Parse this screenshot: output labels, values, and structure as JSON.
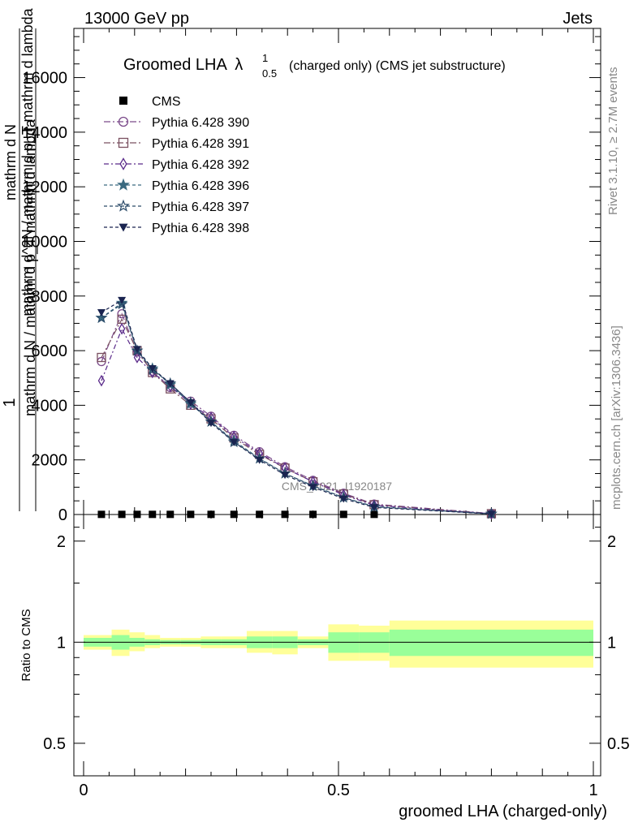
{
  "header": {
    "left": "13000 GeV pp",
    "right": "Jets"
  },
  "side_labels": {
    "rivet": "Rivet 3.1.10, ≥ 2.7M events",
    "mcplots": "mcplots.cern.ch [arXiv:1306.3436]"
  },
  "watermark": "CMS_2021_I1920187",
  "chart_data": [
    {
      "type": "line",
      "title_main": "Groomed LHA",
      "title_symbol": "λ",
      "title_sup": "1",
      "title_sub": "0.5",
      "title_tail": "(charged only) (CMS jet substructure)",
      "ylabel_top": "1",
      "ylabel_mid": "mathrm d N",
      "ylabel_bottom": "mathrm d N / mathrm d p_T mathrm d lambda",
      "ylabel_stacked": "mathrm d^2N / mathrm d p_T mathrm d lambda",
      "xlim": [
        0,
        1
      ],
      "ylim": [
        0,
        17800
      ],
      "y_ticks": [
        "0",
        "2000",
        "4000",
        "6000",
        "8000",
        "10000",
        "12000",
        "14000",
        "16000"
      ],
      "y_tick_values": [
        0,
        2000,
        4000,
        6000,
        8000,
        10000,
        12000,
        14000,
        16000
      ],
      "x": [
        0.035,
        0.075,
        0.105,
        0.135,
        0.17,
        0.21,
        0.25,
        0.295,
        0.345,
        0.395,
        0.45,
        0.51,
        0.57,
        0.8
      ],
      "series": [
        {
          "name": "CMS",
          "color": "#000000",
          "marker": "square-filled",
          "dash": "none",
          "values": [
            5,
            5,
            5,
            5,
            5,
            5,
            5,
            5,
            5,
            5,
            5,
            5,
            5,
            5
          ]
        },
        {
          "name": "Pythia 6.428 390",
          "color": "#7b4a8a",
          "marker": "circle-open",
          "dash": "8,3,2,3",
          "values": [
            5600,
            7350,
            5950,
            5250,
            4650,
            4150,
            3600,
            2900,
            2300,
            1750,
            1250,
            780,
            380,
            35
          ]
        },
        {
          "name": "Pythia 6.428 391",
          "color": "#7a5060",
          "marker": "square-open",
          "dash": "8,3,2,3",
          "values": [
            5750,
            7150,
            6000,
            5200,
            4600,
            4000,
            3500,
            2800,
            2200,
            1700,
            1200,
            750,
            360,
            30
          ]
        },
        {
          "name": "Pythia 6.428 392",
          "color": "#5a2a8a",
          "marker": "diamond-open",
          "dash": "6,3,2,3",
          "values": [
            4900,
            6800,
            5750,
            5200,
            4700,
            4050,
            3550,
            2850,
            2250,
            1700,
            1200,
            720,
            340,
            30
          ]
        },
        {
          "name": "Pythia 6.428 396",
          "color": "#3a6a80",
          "marker": "star-filled",
          "dash": "4,3",
          "values": [
            7200,
            7750,
            6000,
            5350,
            4750,
            4050,
            3400,
            2700,
            2050,
            1500,
            1050,
            620,
            280,
            25
          ]
        },
        {
          "name": "Pythia 6.428 397",
          "color": "#2a4a68",
          "marker": "star-open",
          "dash": "4,3",
          "values": [
            7200,
            7700,
            6000,
            5300,
            4800,
            4100,
            3400,
            2650,
            2050,
            1500,
            1050,
            620,
            290,
            25
          ]
        },
        {
          "name": "Pythia 6.428 398",
          "color": "#1a2450",
          "marker": "triangle-down-filled",
          "dash": "4,3",
          "values": [
            7400,
            7850,
            6050,
            5350,
            4800,
            4100,
            3350,
            2650,
            2000,
            1450,
            1000,
            580,
            260,
            20
          ]
        }
      ]
    },
    {
      "type": "area",
      "ylabel": "Ratio to CMS",
      "xlabel": "groomed LHA (charged-only)",
      "x_ticks": [
        "0",
        "0.5",
        "1"
      ],
      "x_tick_values": [
        0,
        0.5,
        1
      ],
      "y_ticks": [
        "0.5",
        "1",
        "2"
      ],
      "y_tick_values": [
        0.5,
        1,
        2
      ],
      "y_scale": "log",
      "ylim": [
        0.4,
        2.4
      ],
      "band_colors": {
        "total": "#ffff99",
        "stat": "#99ff99"
      },
      "bins": [
        {
          "lo": 0.0,
          "hi": 0.055,
          "total": [
            0.95,
            1.05
          ],
          "stat": [
            0.97,
            1.03
          ]
        },
        {
          "lo": 0.055,
          "hi": 0.09,
          "total": [
            0.91,
            1.09
          ],
          "stat": [
            0.95,
            1.05
          ]
        },
        {
          "lo": 0.09,
          "hi": 0.12,
          "total": [
            0.94,
            1.07
          ],
          "stat": [
            0.97,
            1.03
          ]
        },
        {
          "lo": 0.12,
          "hi": 0.15,
          "total": [
            0.96,
            1.05
          ],
          "stat": [
            0.98,
            1.02
          ]
        },
        {
          "lo": 0.15,
          "hi": 0.19,
          "total": [
            0.97,
            1.03
          ],
          "stat": [
            0.985,
            1.015
          ]
        },
        {
          "lo": 0.19,
          "hi": 0.23,
          "total": [
            0.97,
            1.03
          ],
          "stat": [
            0.985,
            1.015
          ]
        },
        {
          "lo": 0.23,
          "hi": 0.27,
          "total": [
            0.96,
            1.04
          ],
          "stat": [
            0.98,
            1.02
          ]
        },
        {
          "lo": 0.27,
          "hi": 0.32,
          "total": [
            0.96,
            1.04
          ],
          "stat": [
            0.98,
            1.02
          ]
        },
        {
          "lo": 0.32,
          "hi": 0.37,
          "total": [
            0.93,
            1.08
          ],
          "stat": [
            0.96,
            1.04
          ]
        },
        {
          "lo": 0.37,
          "hi": 0.42,
          "total": [
            0.92,
            1.08
          ],
          "stat": [
            0.96,
            1.04
          ]
        },
        {
          "lo": 0.42,
          "hi": 0.48,
          "total": [
            0.96,
            1.04
          ],
          "stat": [
            0.98,
            1.02
          ]
        },
        {
          "lo": 0.48,
          "hi": 0.54,
          "total": [
            0.88,
            1.13
          ],
          "stat": [
            0.93,
            1.07
          ]
        },
        {
          "lo": 0.54,
          "hi": 0.6,
          "total": [
            0.88,
            1.12
          ],
          "stat": [
            0.93,
            1.07
          ]
        },
        {
          "lo": 0.6,
          "hi": 1.0,
          "total": [
            0.84,
            1.16
          ],
          "stat": [
            0.91,
            1.09
          ]
        }
      ],
      "reference_line": 1
    }
  ]
}
